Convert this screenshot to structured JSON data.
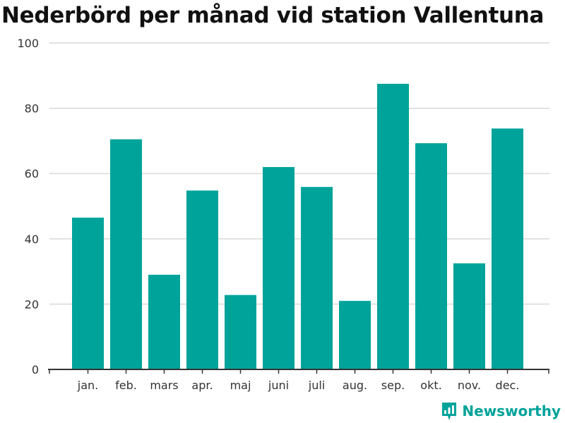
{
  "chart_data": {
    "type": "bar",
    "title": "Nederbörd per månad vid station Vallentuna",
    "categories": [
      "jan.",
      "feb.",
      "mars",
      "apr.",
      "maj",
      "juni",
      "juli",
      "aug.",
      "sep.",
      "okt.",
      "nov.",
      "dec."
    ],
    "values": [
      46.5,
      70.5,
      29,
      54.8,
      22.8,
      62,
      55.9,
      21,
      87.5,
      69.3,
      32.5,
      73.8
    ],
    "xlabel": "",
    "ylabel": "",
    "ylim": [
      0,
      100
    ],
    "yticks": [
      0,
      20,
      40,
      60,
      80,
      100
    ],
    "grid": true,
    "legend": "none",
    "bar_color": "#00a39a",
    "grid_color": "#d9d9d9",
    "axis_color": "#333333"
  },
  "brand": {
    "name": "Newsworthy",
    "icon": "bar-chart-logo-icon",
    "color": "#00a39a"
  }
}
